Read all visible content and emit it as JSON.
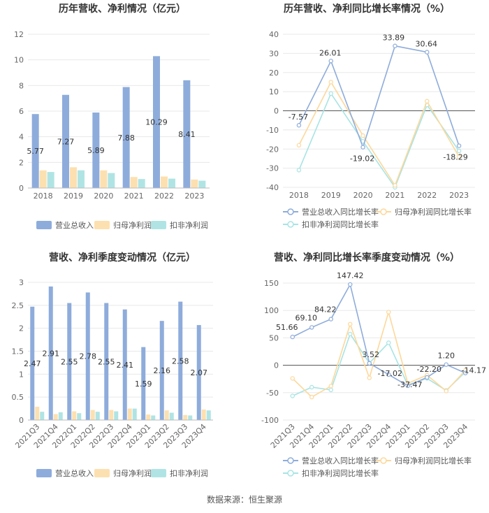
{
  "footer": "数据来源：恒生聚源",
  "colors": {
    "revenue": "#8eacdb",
    "net_profit": "#fde0b0",
    "deducted_profit": "#b0e4e4",
    "line_revenue": "#8eacdb",
    "line_net": "#fdd89a",
    "line_deducted": "#a8e4e4",
    "grid": "#e8e8e8",
    "axis_text": "#666666",
    "title": "#333333"
  },
  "chart_data": [
    {
      "id": "annual_bar",
      "type": "bar",
      "title": "历年营收、净利情况（亿元）",
      "categories": [
        "2018",
        "2019",
        "2020",
        "2021",
        "2022",
        "2023"
      ],
      "ylim": [
        0,
        12
      ],
      "yticks": [
        0,
        2,
        4,
        6,
        8,
        10,
        12
      ],
      "series": [
        {
          "name": "营业总收入",
          "values": [
            5.77,
            7.27,
            5.89,
            7.88,
            10.29,
            8.41
          ],
          "labels": [
            "5.77",
            "7.27",
            "5.89",
            "7.88",
            "10.29",
            "8.41"
          ]
        },
        {
          "name": "归母净利润",
          "values": [
            1.38,
            1.62,
            1.38,
            0.86,
            0.9,
            0.66
          ]
        },
        {
          "name": "扣非净利润",
          "values": [
            1.25,
            1.38,
            1.17,
            0.7,
            0.73,
            0.57
          ]
        }
      ],
      "legend": "bottom"
    },
    {
      "id": "annual_growth",
      "type": "line",
      "title": "历年营收、净利同比增长率情况（%）",
      "categories": [
        "2018",
        "2019",
        "2020",
        "2021",
        "2022",
        "2023"
      ],
      "ylim": [
        -40,
        40
      ],
      "yticks": [
        -40,
        -30,
        -20,
        -10,
        0,
        10,
        20,
        30,
        40
      ],
      "series": [
        {
          "name": "营业总收入同比增长率",
          "values": [
            -7.57,
            26.01,
            -19.02,
            33.89,
            30.64,
            -18.29
          ],
          "labels": [
            "-7.57",
            "26.01",
            "-19.02",
            "33.89",
            "30.64",
            "-18.29"
          ]
        },
        {
          "name": "归母净利润同比增长率",
          "values": [
            -18,
            15,
            -13,
            -39,
            5,
            -24
          ]
        },
        {
          "name": "扣非净利润同比增长率",
          "values": [
            -31,
            9,
            -16,
            -40,
            3,
            -21
          ]
        }
      ],
      "legend": "bottom"
    },
    {
      "id": "quarterly_bar",
      "type": "bar",
      "title": "营收、净利季度变动情况（亿元）",
      "categories": [
        "2021Q3",
        "2021Q4",
        "2022Q1",
        "2022Q2",
        "2022Q3",
        "2022Q4",
        "2023Q1",
        "2023Q2",
        "2023Q3",
        "2023Q4"
      ],
      "ylim": [
        0,
        3
      ],
      "yticks": [
        0,
        0.5,
        1,
        1.5,
        2,
        2.5,
        3
      ],
      "yticklabels": [
        "0",
        "0.5",
        "1",
        "1.5",
        "2",
        "2.5",
        "3"
      ],
      "series": [
        {
          "name": "营业总收入",
          "values": [
            2.47,
            2.91,
            2.55,
            2.78,
            2.55,
            2.41,
            1.59,
            2.16,
            2.58,
            2.07
          ],
          "labels": [
            "2.47",
            "2.91",
            "2.55",
            "2.78",
            "2.55",
            "2.41",
            "1.59",
            "2.16",
            "2.58",
            "2.07"
          ]
        },
        {
          "name": "归母净利润",
          "values": [
            0.29,
            0.13,
            0.19,
            0.22,
            0.22,
            0.25,
            0.12,
            0.21,
            0.11,
            0.23
          ]
        },
        {
          "name": "扣非净利润",
          "values": [
            0.18,
            0.17,
            0.15,
            0.18,
            0.19,
            0.25,
            0.1,
            0.16,
            0.1,
            0.21
          ]
        }
      ],
      "legend": "bottom"
    },
    {
      "id": "quarterly_growth",
      "type": "line",
      "title": "营收、净利同比增长率季度变动情况（%）",
      "categories": [
        "2021Q3",
        "2021Q4",
        "2022Q1",
        "2022Q2",
        "2022Q3",
        "2022Q4",
        "2023Q1",
        "2023Q2",
        "2023Q3",
        "2023Q4"
      ],
      "ylim": [
        -100,
        150
      ],
      "yticks": [
        -100,
        -50,
        0,
        50,
        100,
        150
      ],
      "series": [
        {
          "name": "营业总收入同比增长率",
          "values": [
            51.66,
            69.1,
            84.22,
            147.42,
            3.52,
            -17.02,
            -37.47,
            -22.2,
            1.2,
            -14.17
          ],
          "labels": [
            "51.66",
            "69.10",
            "84.22",
            "147.42",
            "3.52",
            "-17.02",
            "-37.47",
            "-22.20",
            "1.20",
            "-14.17"
          ]
        },
        {
          "name": "归母净利润同比增长率",
          "values": [
            -24,
            -58,
            -38,
            75,
            -23,
            97,
            -33,
            -18,
            -47,
            -9
          ]
        },
        {
          "name": "扣非净利润同比增长率",
          "values": [
            -56,
            -40,
            -45,
            57,
            4,
            41,
            -36,
            -24,
            -46,
            -12
          ]
        }
      ],
      "legend": "bottom"
    }
  ]
}
